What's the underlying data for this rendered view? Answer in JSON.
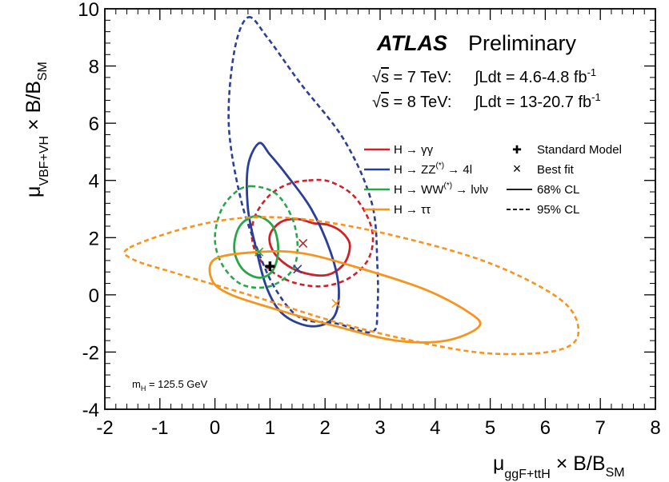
{
  "chart_data": {
    "type": "scatter",
    "title": "ATLAS Preliminary",
    "experiment": "ATLAS",
    "status": "Preliminary",
    "energy_lines": [
      {
        "sqrt": "s",
        "energy": " = 7 TeV:",
        "lumi": "Ldt = 4.6-4.8 fb",
        "exp": "-1"
      },
      {
        "sqrt": "s",
        "energy": " = 8 TeV:",
        "lumi": "Ldt = 13-20.7 fb",
        "exp": "-1"
      }
    ],
    "mass_label": {
      "m": "m",
      "sub": "H",
      "value": " = 125.5 GeV"
    },
    "xlabel": {
      "mu": "μ",
      "sub": "ggF+ttH",
      "tail": " × B/B",
      "tailsub": "SM"
    },
    "ylabel": {
      "mu": "μ",
      "sub": "VBF+VH",
      "tail": " × B/B",
      "tailsub": "SM"
    },
    "xlim": [
      -2,
      8
    ],
    "ylim": [
      -4,
      10
    ],
    "xticks": [
      "-2",
      "-1",
      "0",
      "1",
      "2",
      "3",
      "4",
      "5",
      "6",
      "7",
      "8"
    ],
    "yticks": [
      "-4",
      "-2",
      "0",
      "2",
      "4",
      "6",
      "8",
      "10"
    ],
    "standard_model": {
      "x": 1.0,
      "y": 1.0
    },
    "legend": {
      "placement": "top-right",
      "channels": [
        {
          "label": "H → γγ",
          "color": "#d0202a"
        },
        {
          "label": "H → ZZ(*) → 4l",
          "color": "#2a3f98"
        },
        {
          "label": "H → WW(*) → lνlν",
          "color": "#2aa64a"
        },
        {
          "label": "H → ττ",
          "color": "#f7941d"
        }
      ],
      "markers": [
        {
          "symbol": "✚",
          "label": "Standard Model"
        },
        {
          "symbol": "×",
          "label": "Best fit"
        }
      ],
      "styles": [
        {
          "label": "68% CL",
          "style": "solid"
        },
        {
          "label": "95% CL",
          "style": "dashed"
        }
      ]
    },
    "series": [
      {
        "name": "H → γγ",
        "color": "#d0202a",
        "best_fit": {
          "x": 1.6,
          "y": 1.8
        },
        "cl68": [
          [
            1.8,
            2.5
          ],
          [
            2.05,
            2.45
          ],
          [
            2.3,
            2.2
          ],
          [
            2.45,
            1.75
          ],
          [
            2.35,
            1.1
          ],
          [
            2.05,
            0.7
          ],
          [
            1.65,
            0.75
          ],
          [
            1.3,
            1.05
          ],
          [
            1.05,
            1.55
          ],
          [
            1.0,
            2.1
          ],
          [
            1.2,
            2.55
          ],
          [
            1.5,
            2.65
          ]
        ],
        "cl95": [
          [
            1.7,
            4.0
          ],
          [
            2.1,
            3.95
          ],
          [
            2.55,
            3.4
          ],
          [
            2.85,
            2.3
          ],
          [
            2.8,
            1.3
          ],
          [
            2.45,
            0.6
          ],
          [
            1.95,
            0.3
          ],
          [
            1.4,
            0.45
          ],
          [
            0.95,
            0.95
          ],
          [
            0.7,
            1.7
          ],
          [
            0.7,
            2.6
          ],
          [
            0.95,
            3.4
          ],
          [
            1.3,
            3.85
          ]
        ]
      },
      {
        "name": "H → ZZ(*) → 4l",
        "color": "#2a3f98",
        "best_fit": {
          "x": 1.5,
          "y": 0.9
        },
        "cl68": [
          [
            0.8,
            5.3
          ],
          [
            1.0,
            4.9
          ],
          [
            1.3,
            4.2
          ],
          [
            1.75,
            3.0
          ],
          [
            2.1,
            1.5
          ],
          [
            2.25,
            0.2
          ],
          [
            2.15,
            -0.8
          ],
          [
            1.75,
            -1.1
          ],
          [
            1.25,
            -0.7
          ],
          [
            0.95,
            0.2
          ],
          [
            0.75,
            1.6
          ],
          [
            0.6,
            3.0
          ],
          [
            0.6,
            4.5
          ]
        ],
        "cl95": [
          [
            0.6,
            9.7
          ],
          [
            0.95,
            9.0
          ],
          [
            1.55,
            7.4
          ],
          [
            2.35,
            5.4
          ],
          [
            2.85,
            3.2
          ],
          [
            2.95,
            1.0
          ],
          [
            2.95,
            -0.5
          ],
          [
            2.85,
            -1.3
          ],
          [
            2.2,
            -1.0
          ],
          [
            1.55,
            -0.8
          ],
          [
            1.1,
            0.2
          ],
          [
            0.75,
            1.7
          ],
          [
            0.45,
            3.5
          ],
          [
            0.25,
            6.0
          ],
          [
            0.35,
            8.5
          ]
        ]
      },
      {
        "name": "H → WW(*) → lνlν",
        "color": "#2aa64a",
        "best_fit": {
          "x": 0.8,
          "y": 1.5
        },
        "cl68": [
          [
            0.75,
            2.75
          ],
          [
            1.05,
            2.4
          ],
          [
            1.15,
            1.6
          ],
          [
            1.05,
            0.85
          ],
          [
            0.8,
            0.6
          ],
          [
            0.5,
            0.9
          ],
          [
            0.35,
            1.6
          ],
          [
            0.45,
            2.4
          ]
        ],
        "cl95": [
          [
            0.65,
            3.8
          ],
          [
            1.1,
            3.55
          ],
          [
            1.4,
            2.7
          ],
          [
            1.5,
            1.7
          ],
          [
            1.4,
            0.85
          ],
          [
            1.0,
            0.3
          ],
          [
            0.5,
            0.35
          ],
          [
            0.15,
            1.0
          ],
          [
            0.0,
            1.9
          ],
          [
            0.1,
            2.9
          ],
          [
            0.35,
            3.55
          ]
        ]
      },
      {
        "name": "H → ττ",
        "color": "#f7941d",
        "best_fit": {
          "x": 2.2,
          "y": -0.3
        },
        "cl68": [
          [
            0.0,
            1.25
          ],
          [
            0.8,
            1.5
          ],
          [
            1.6,
            1.45
          ],
          [
            2.6,
            0.95
          ],
          [
            3.8,
            0.2
          ],
          [
            4.6,
            -0.6
          ],
          [
            4.8,
            -1.1
          ],
          [
            4.2,
            -1.6
          ],
          [
            3.3,
            -1.6
          ],
          [
            2.2,
            -1.1
          ],
          [
            1.1,
            -0.5
          ],
          [
            0.3,
            0.0
          ],
          [
            -0.05,
            0.5
          ]
        ],
        "cl95": [
          [
            -1.55,
            1.65
          ],
          [
            -0.5,
            2.35
          ],
          [
            0.6,
            2.7
          ],
          [
            1.8,
            2.6
          ],
          [
            3.3,
            2.05
          ],
          [
            5.0,
            1.1
          ],
          [
            6.3,
            -0.2
          ],
          [
            6.6,
            -1.35
          ],
          [
            6.2,
            -1.95
          ],
          [
            5.0,
            -2.05
          ],
          [
            3.7,
            -1.65
          ],
          [
            2.2,
            -0.95
          ],
          [
            0.7,
            -0.05
          ],
          [
            -0.7,
            0.75
          ],
          [
            -1.5,
            1.25
          ]
        ]
      }
    ]
  }
}
